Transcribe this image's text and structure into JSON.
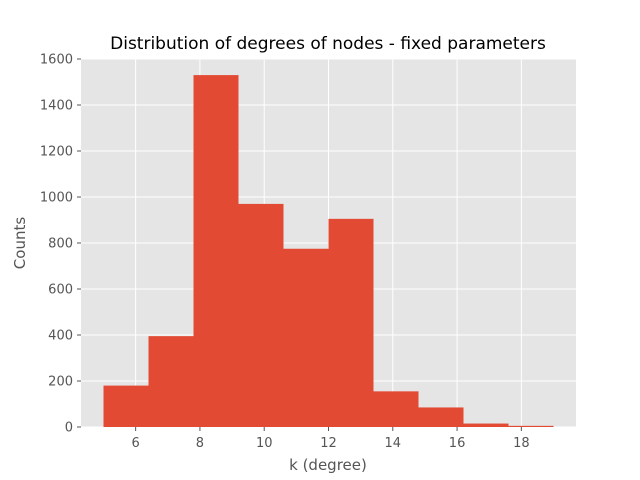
{
  "chart_data": {
    "type": "bar",
    "title": "Distribution of degrees of nodes - fixed parameters",
    "xlabel": "k (degree)",
    "ylabel": "Counts",
    "xlim": [
      4.3,
      19.7
    ],
    "ylim": [
      0,
      1600
    ],
    "xticks": [
      "6",
      "8",
      "10",
      "12",
      "14",
      "16",
      "18"
    ],
    "yticks": [
      "0",
      "200",
      "400",
      "600",
      "800",
      "1000",
      "1200",
      "1400",
      "1600"
    ],
    "bin_edges": [
      5,
      6.4,
      7.8,
      9.2,
      10.6,
      12.0,
      13.4,
      14.8,
      16.2,
      17.6,
      19.0
    ],
    "values": [
      180,
      395,
      1530,
      970,
      775,
      905,
      155,
      85,
      15,
      5
    ],
    "bar_color": "#E24A33",
    "background_color": "#E5E5E5",
    "grid_color": "#FFFFFF",
    "grid": true,
    "legend": false
  }
}
